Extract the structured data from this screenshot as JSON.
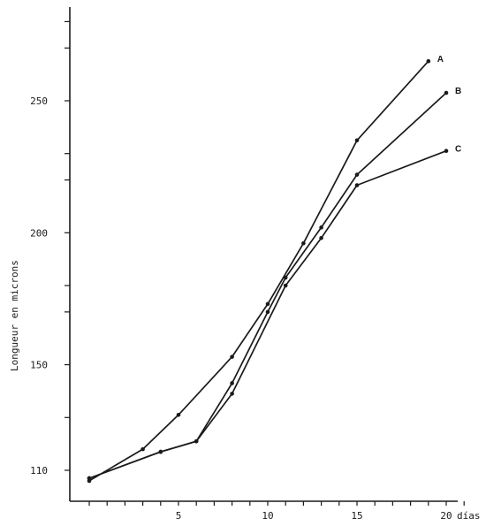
{
  "chart_data": {
    "type": "line",
    "title": "",
    "xlabel": "",
    "x_unit_label": "días",
    "ylabel": "Longueur en microns",
    "xlim": [
      0,
      21
    ],
    "ylim": [
      100,
      290
    ],
    "x_ticks": [
      0,
      1,
      2,
      3,
      4,
      5,
      6,
      7,
      8,
      9,
      10,
      11,
      12,
      13,
      14,
      15,
      16,
      17,
      18,
      19,
      20,
      21
    ],
    "x_tick_labels": [
      {
        "value": 5,
        "label": "5"
      },
      {
        "value": 10,
        "label": "10"
      },
      {
        "value": 15,
        "label": "15"
      },
      {
        "value": 20,
        "label": "20"
      }
    ],
    "y_ticks": [
      110,
      130,
      150,
      170,
      180,
      200,
      220,
      230,
      250,
      270,
      280
    ],
    "y_tick_labels": [
      {
        "value": 110,
        "label": "110"
      },
      {
        "value": 150,
        "label": "150"
      },
      {
        "value": 200,
        "label": "200"
      },
      {
        "value": 250,
        "label": "250"
      }
    ],
    "grid": false,
    "series": [
      {
        "name": "A",
        "x": [
          0,
          3,
          5,
          8,
          10,
          12,
          15,
          19
        ],
        "y": [
          106,
          118,
          131,
          153,
          173,
          196,
          235,
          265
        ]
      },
      {
        "name": "B",
        "x": [
          0,
          4,
          6,
          8,
          10,
          11,
          13,
          15,
          20
        ],
        "y": [
          107,
          117,
          121,
          143,
          170,
          183,
          202,
          222,
          253
        ]
      },
      {
        "name": "C",
        "x": [
          0,
          4,
          6,
          8,
          11,
          13,
          15,
          20
        ],
        "y": [
          107,
          117,
          121,
          139,
          180,
          198,
          218,
          231
        ]
      }
    ]
  }
}
